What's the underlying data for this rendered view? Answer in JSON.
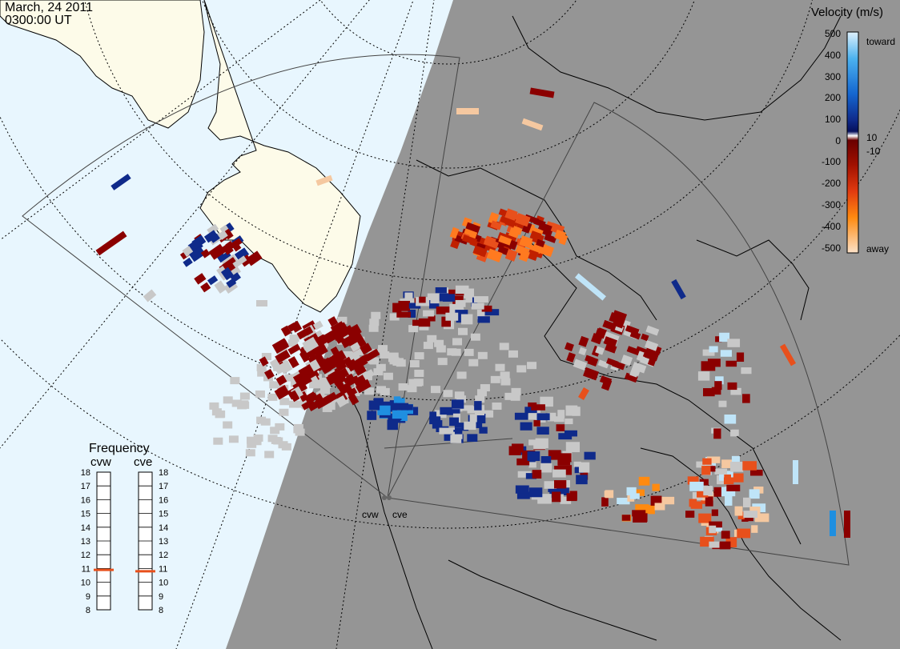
{
  "header": {
    "date": "March, 24 2011",
    "time": "0300:00 UT"
  },
  "radars": {
    "west_label": "cvw",
    "east_label": "cve"
  },
  "velocity_scale": {
    "title": "Velocity (m/s)",
    "ticks": [
      "500",
      "400",
      "300",
      "200",
      "100",
      "10",
      "0",
      "-10",
      "-100",
      "-200",
      "-300",
      "-400",
      "-500"
    ],
    "toward_label": "toward",
    "away_label": "away",
    "colors": {
      "toward_light": "#bfe4f8",
      "toward_mid": "#1f8fe0",
      "toward_dark": "#0f2a8a",
      "zero": "#ffffff",
      "away_dark": "#8b0000",
      "away_mid": "#e8501c",
      "away_light": "#f5c8a0"
    }
  },
  "frequency": {
    "title": "Frequency",
    "cvw_label": "cvw",
    "cve_label": "cve",
    "scale": [
      "18",
      "17",
      "16",
      "15",
      "14",
      "13",
      "12",
      "11",
      "10",
      "9",
      "8"
    ],
    "cvw_value_mhz": 10.9,
    "cve_value_mhz": 10.8,
    "marker_color": "#e8501c"
  },
  "map_colors": {
    "ocean": "#e8f6fe",
    "land_lit": "#fdfbe9",
    "night": "#959595",
    "ground_scatter": "#c8c8c8"
  }
}
